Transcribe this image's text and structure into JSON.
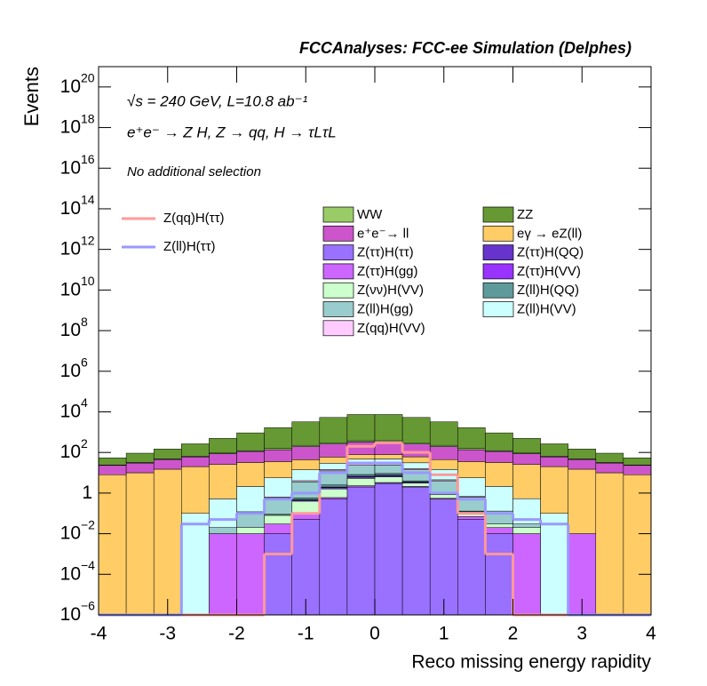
{
  "chart_data": {
    "type": "stacked_histogram",
    "title": "FCCAnalyses: FCC-ee Simulation (Delphes)",
    "annotations": [
      "√s = 240 GeV, L=10.8 ab⁻¹",
      "e⁺e⁻ → Z H, Z → qq, H → τLτL",
      "No additional selection"
    ],
    "x_label": "Reco missing energy rapidity",
    "y_label": "Events",
    "ylog": true,
    "xlim": [
      -4,
      4
    ],
    "ylim": [
      1e-06,
      1e+21
    ],
    "xticks": [
      -4,
      -3,
      -2,
      -1,
      0,
      1,
      2,
      3,
      4
    ],
    "yticks": [
      {
        "value": 1e-06,
        "label": "10",
        "exponent": "−6"
      },
      {
        "value": 0.0001,
        "label": "10",
        "exponent": "−4"
      },
      {
        "value": 0.01,
        "label": "10",
        "exponent": "−2"
      },
      1,
      {
        "value": 100,
        "label": "10",
        "exponent": "2"
      },
      {
        "value": 10000,
        "label": "10",
        "exponent": "4"
      },
      {
        "value": 1000000.0,
        "label": "10",
        "exponent": "6"
      },
      {
        "value": 100000000.0,
        "label": "10",
        "exponent": "8"
      },
      {
        "value": 10000000000.0,
        "label": "10",
        "exponent": "10"
      },
      {
        "value": 1000000000000.0,
        "label": "10",
        "exponent": "12"
      },
      {
        "value": 100000000000000.0,
        "label": "10",
        "exponent": "14"
      },
      {
        "value": 1e+16,
        "label": "10",
        "exponent": "16"
      },
      {
        "value": 1e+18,
        "label": "10",
        "exponent": "18"
      },
      {
        "value": 1e+20,
        "label": "10",
        "exponent": "20"
      }
    ],
    "bins": [
      -4,
      -3.6,
      -3.2,
      -2.8,
      -2.4,
      -2,
      -1.6,
      -1.2,
      -0.8,
      -0.4,
      0,
      0.4,
      0.8,
      1.2,
      1.6,
      2,
      2.4,
      2.8,
      3.2,
      3.6,
      4
    ],
    "series": [
      {
        "name": "Z(ττ)H(ττ)",
        "color": "#9a70ff",
        "values": [
          0,
          0,
          0,
          0,
          0,
          0,
          0.01,
          0.05,
          0.5,
          2,
          3,
          2,
          0.5,
          0.05,
          0.01,
          0,
          0,
          0,
          0,
          0
        ]
      },
      {
        "name": "Z(ττ)H(gg)",
        "color": "#cc66ff",
        "values": [
          0,
          0,
          0,
          0,
          0.01,
          0.01,
          0.02,
          0.05,
          0.1,
          0.3,
          0.3,
          0.1,
          0.05,
          0.02,
          0.01,
          0.01,
          0,
          0.01,
          0,
          0
        ]
      },
      {
        "name": "Z(νν)H(VV)",
        "color": "#ccffcc",
        "values": [
          0,
          0,
          0,
          0,
          0,
          0.01,
          0.05,
          0.3,
          1,
          3,
          3,
          1,
          0.3,
          0.05,
          0.01,
          0.01,
          0,
          0,
          0,
          0
        ]
      },
      {
        "name": "Z(ττ)H(QQ)",
        "color": "#6633cc",
        "values": [
          0,
          0,
          0,
          0,
          0,
          0,
          0,
          0.05,
          0.3,
          1,
          1,
          0.3,
          0.05,
          0,
          0,
          0,
          0,
          0,
          0,
          0
        ]
      },
      {
        "name": "Z(ττ)H(VV)",
        "color": "#9933ff",
        "values": [
          0,
          0,
          0,
          0,
          0,
          0,
          0,
          0.02,
          0.1,
          0.4,
          0.4,
          0.1,
          0.02,
          0,
          0,
          0,
          0,
          0,
          0,
          0
        ]
      },
      {
        "name": "Z(ll)H(QQ)",
        "color": "#5f9a9a",
        "values": [
          0,
          0,
          0,
          0,
          0,
          0,
          0.01,
          0.1,
          0.5,
          1.5,
          1.5,
          0.5,
          0.1,
          0.01,
          0,
          0,
          0,
          0,
          0,
          0
        ]
      },
      {
        "name": "Z(ll)H(gg)",
        "color": "#99cccc",
        "values": [
          0,
          0,
          0,
          0,
          0.01,
          0.1,
          0.5,
          3,
          10,
          15,
          15,
          10,
          3,
          0.5,
          0.1,
          0.01,
          0,
          0,
          0,
          0
        ]
      },
      {
        "name": "Z(qq)H(VV)",
        "color": "#ffccff",
        "values": [
          0,
          0,
          0,
          0,
          0,
          0,
          0.05,
          0.5,
          2,
          4,
          4,
          2,
          0.5,
          0.05,
          0,
          0,
          0,
          0,
          0,
          0
        ]
      },
      {
        "name": "Z(ll)H(VV)",
        "color": "#ccffff",
        "values": [
          0,
          0,
          0,
          0.1,
          0.5,
          2,
          5,
          10,
          15,
          20,
          20,
          15,
          10,
          5,
          2,
          0.5,
          0.1,
          0,
          0,
          0
        ]
      },
      {
        "name": "eγ → eZ(ll)",
        "color": "#ffcc66",
        "values": [
          8,
          10,
          15,
          20,
          25,
          30,
          30,
          30,
          30,
          30,
          30,
          30,
          30,
          30,
          30,
          25,
          20,
          15,
          10,
          8
        ]
      },
      {
        "name": "e⁺e⁻→ ll",
        "color": "#cc55cc",
        "values": [
          15,
          20,
          30,
          40,
          60,
          80,
          100,
          150,
          200,
          250,
          250,
          200,
          150,
          100,
          80,
          60,
          40,
          30,
          20,
          15
        ]
      },
      {
        "name": "WW",
        "color": "#99cc66",
        "values": [
          1,
          2,
          3,
          5,
          8,
          10,
          20,
          30,
          40,
          50,
          50,
          40,
          30,
          20,
          10,
          8,
          5,
          3,
          2,
          1
        ]
      },
      {
        "name": "ZZ",
        "color": "#669933",
        "values": [
          30,
          60,
          100,
          200,
          400,
          800,
          1500,
          3000,
          5000,
          7000,
          7000,
          5000,
          3000,
          1500,
          800,
          400,
          200,
          100,
          60,
          30
        ]
      }
    ],
    "lines": [
      {
        "name": "Z(qq)H(ττ)",
        "color": "#ff9999",
        "values": [
          0,
          0,
          0,
          0,
          0,
          0,
          0.001,
          0.1,
          10,
          200,
          300,
          100,
          8,
          0.1,
          0.001,
          0,
          0,
          0,
          0,
          0
        ]
      },
      {
        "name": "Z(ll)H(ττ)",
        "color": "#9999ff",
        "values": [
          0,
          0,
          0,
          0.03,
          0.05,
          0.1,
          0.5,
          1,
          10,
          30,
          30,
          10,
          1,
          0.5,
          0.1,
          0.05,
          0.03,
          0,
          0,
          0
        ]
      }
    ]
  }
}
